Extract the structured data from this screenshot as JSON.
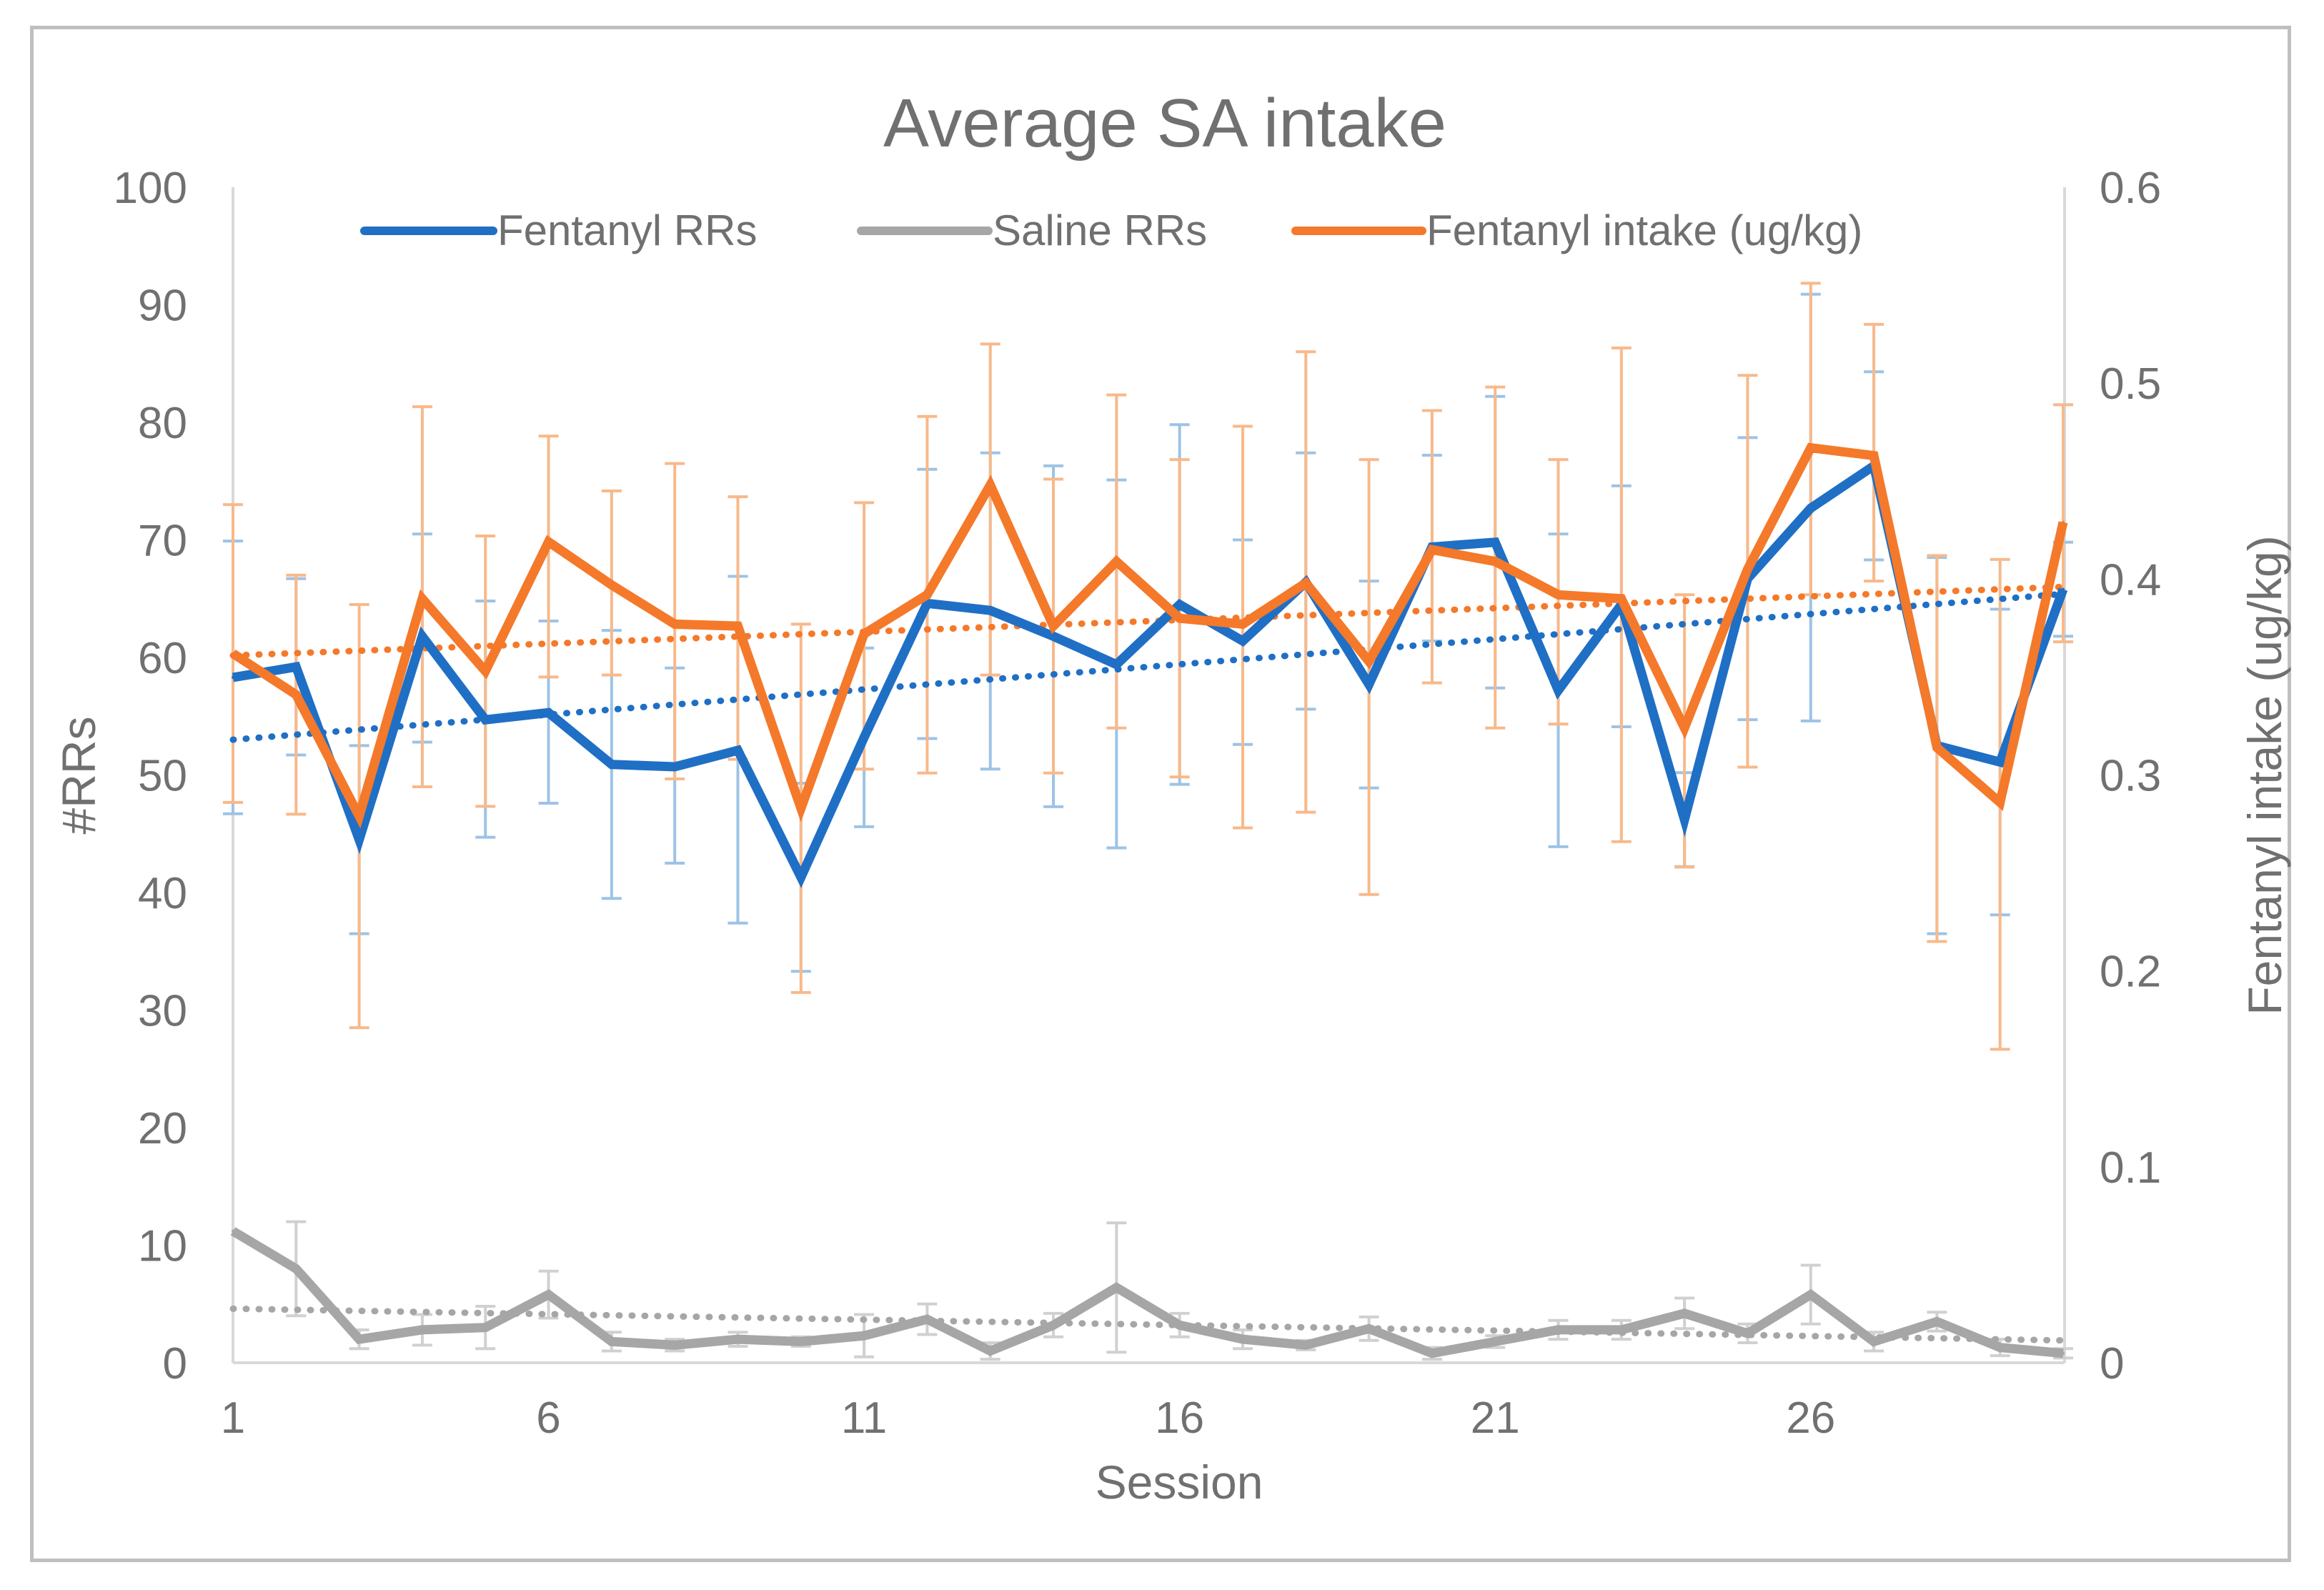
{
  "chart_data": {
    "type": "line",
    "title": "Average SA intake",
    "xlabel": "Session",
    "ylabel": "#RRs",
    "y2label": "Fentanyl intake (ug/kg)",
    "x": [
      1,
      2,
      3,
      4,
      5,
      6,
      7,
      8,
      9,
      10,
      11,
      12,
      13,
      14,
      15,
      16,
      17,
      18,
      19,
      20,
      21,
      22,
      23,
      24,
      25,
      26,
      27,
      28,
      29,
      30
    ],
    "xticks": [
      "1",
      "6",
      "11",
      "16",
      "21",
      "26"
    ],
    "xtick_values": [
      1,
      6,
      11,
      16,
      21,
      26
    ],
    "ylim": [
      0,
      100
    ],
    "yticks": [
      "0",
      "10",
      "20",
      "30",
      "40",
      "50",
      "60",
      "70",
      "80",
      "90",
      "100"
    ],
    "y2lim": [
      0,
      0.6
    ],
    "y2ticks": [
      "0",
      "0.1",
      "0.2",
      "0.3",
      "0.4",
      "0.5",
      "0.6"
    ],
    "colors": {
      "fentanyl": "#1f6fc5",
      "saline": "#a6a6a6",
      "intake": "#f4792a",
      "axis": "#d9d9d9",
      "text": "#707070"
    },
    "legend": [
      "Fentanyl RRs",
      "Saline RRs",
      "Fentanyl intake (ug/kg)"
    ],
    "series": [
      {
        "name": "Fentanyl RRs",
        "axis": "left",
        "values": [
          58.3,
          59.2,
          44.5,
          61.8,
          54.7,
          55.3,
          50.9,
          50.7,
          52.1,
          41.3,
          53.2,
          64.6,
          64.0,
          61.8,
          59.4,
          64.5,
          61.4,
          66.4,
          57.7,
          69.4,
          69.8,
          57.2,
          64.5,
          46.2,
          66.7,
          72.7,
          76.3,
          52.5,
          51.1,
          65.8
        ],
        "err_lo": [
          11.6,
          7.5,
          8.0,
          9.0,
          10.0,
          7.7,
          11.4,
          8.2,
          14.7,
          8.0,
          7.6,
          11.5,
          13.5,
          14.5,
          15.6,
          15.3,
          8.8,
          10.8,
          8.8,
          8.0,
          12.4,
          13.3,
          10.4,
          4.0,
          12.0,
          18.1,
          8.0,
          16.0,
          13.0,
          4.0
        ],
        "err_hi": [
          11.6,
          7.5,
          8.0,
          8.7,
          10.1,
          7.8,
          11.4,
          8.4,
          14.8,
          8.0,
          7.6,
          11.4,
          13.4,
          14.5,
          15.7,
          15.3,
          8.6,
          11.0,
          8.8,
          7.8,
          12.4,
          13.3,
          10.1,
          4.0,
          12.0,
          18.2,
          8.0,
          16.0,
          13.0,
          4.0
        ],
        "trend": [
          53.0,
          65.4
        ]
      },
      {
        "name": "Saline RRs",
        "axis": "left",
        "values": [
          11.2,
          8.0,
          2.0,
          2.8,
          3.0,
          5.8,
          1.8,
          1.5,
          2.0,
          1.8,
          2.3,
          3.7,
          1.0,
          3.2,
          6.4,
          3.2,
          2.0,
          1.5,
          2.9,
          0.8,
          1.8,
          2.8,
          2.8,
          4.2,
          2.5,
          5.8,
          1.8,
          3.5,
          1.3,
          0.8
        ],
        "err_lo": [
          0,
          4.0,
          0.8,
          1.3,
          1.8,
          2.0,
          0.8,
          0.5,
          0.6,
          0.4,
          1.8,
          1.3,
          0.7,
          1.0,
          5.5,
          1.0,
          0.8,
          0.4,
          1.0,
          0.5,
          0.5,
          0.8,
          0.8,
          1.3,
          0.8,
          2.5,
          0.8,
          0.8,
          0.7,
          0.4
        ],
        "err_hi": [
          0,
          4.0,
          0.8,
          1.3,
          1.8,
          2.0,
          0.8,
          0.5,
          0.6,
          0.4,
          1.8,
          1.3,
          0.7,
          1.0,
          5.5,
          1.0,
          0.8,
          0.4,
          1.0,
          0.5,
          0.5,
          0.8,
          0.8,
          1.3,
          0.8,
          2.5,
          0.8,
          0.8,
          0.7,
          0.4
        ],
        "trend": [
          4.6,
          1.9
        ]
      },
      {
        "name": "Fentanyl intake (ug/kg)",
        "axis": "right",
        "values": [
          0.362,
          0.341,
          0.279,
          0.39,
          0.353,
          0.419,
          0.397,
          0.377,
          0.376,
          0.283,
          0.372,
          0.392,
          0.448,
          0.376,
          0.409,
          0.38,
          0.377,
          0.398,
          0.358,
          0.415,
          0.409,
          0.392,
          0.39,
          0.324,
          0.405,
          0.467,
          0.463,
          0.314,
          0.286,
          0.429
        ],
        "err_lo": [
          0.076,
          0.061,
          0.108,
          0.096,
          0.069,
          0.069,
          0.046,
          0.079,
          0.068,
          0.094,
          0.069,
          0.091,
          0.097,
          0.075,
          0.085,
          0.081,
          0.104,
          0.117,
          0.119,
          0.068,
          0.085,
          0.066,
          0.124,
          0.071,
          0.101,
          0.075,
          0.064,
          0.099,
          0.126,
          0.061
        ],
        "err_hi": [
          0.076,
          0.061,
          0.108,
          0.098,
          0.069,
          0.054,
          0.048,
          0.082,
          0.066,
          0.094,
          0.067,
          0.091,
          0.072,
          0.075,
          0.085,
          0.081,
          0.101,
          0.118,
          0.103,
          0.071,
          0.089,
          0.069,
          0.128,
          0.068,
          0.099,
          0.084,
          0.067,
          0.098,
          0.124,
          0.06
        ],
        "trend": [
          0.361,
          0.396
        ]
      }
    ]
  }
}
